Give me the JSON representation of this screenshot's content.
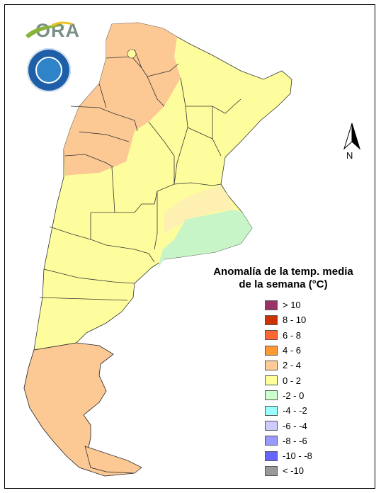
{
  "logo": {
    "text": "ORA"
  },
  "compass": {
    "label": "N"
  },
  "legend": {
    "title_line1": "Anomalía de la temp. media",
    "title_line2": "de la semana (°C)",
    "items": [
      {
        "label": "> 10",
        "color": "#993366"
      },
      {
        "label": "8 - 10",
        "color": "#cc3300"
      },
      {
        "label": "6 - 8",
        "color": "#ff6633"
      },
      {
        "label": "4 - 6",
        "color": "#ff9933"
      },
      {
        "label": "2 - 4",
        "color": "#ffcc99"
      },
      {
        "label": "0 - 2",
        "color": "#ffff99"
      },
      {
        "label": "-2 - 0",
        "color": "#ccffcc"
      },
      {
        "label": "-4 - -2",
        "color": "#99ffff"
      },
      {
        "label": "-6 - -4",
        "color": "#ccccff"
      },
      {
        "label": "-8 - -6",
        "color": "#9999ff"
      },
      {
        "label": "-10 - -8",
        "color": "#6666ff"
      },
      {
        "label": "< -10",
        "color": "#999999"
      }
    ]
  },
  "map_colors": {
    "warm": "#fcc894",
    "mild": "#fdfd9e",
    "cool": "#c8f5c8",
    "border": "#333333"
  }
}
